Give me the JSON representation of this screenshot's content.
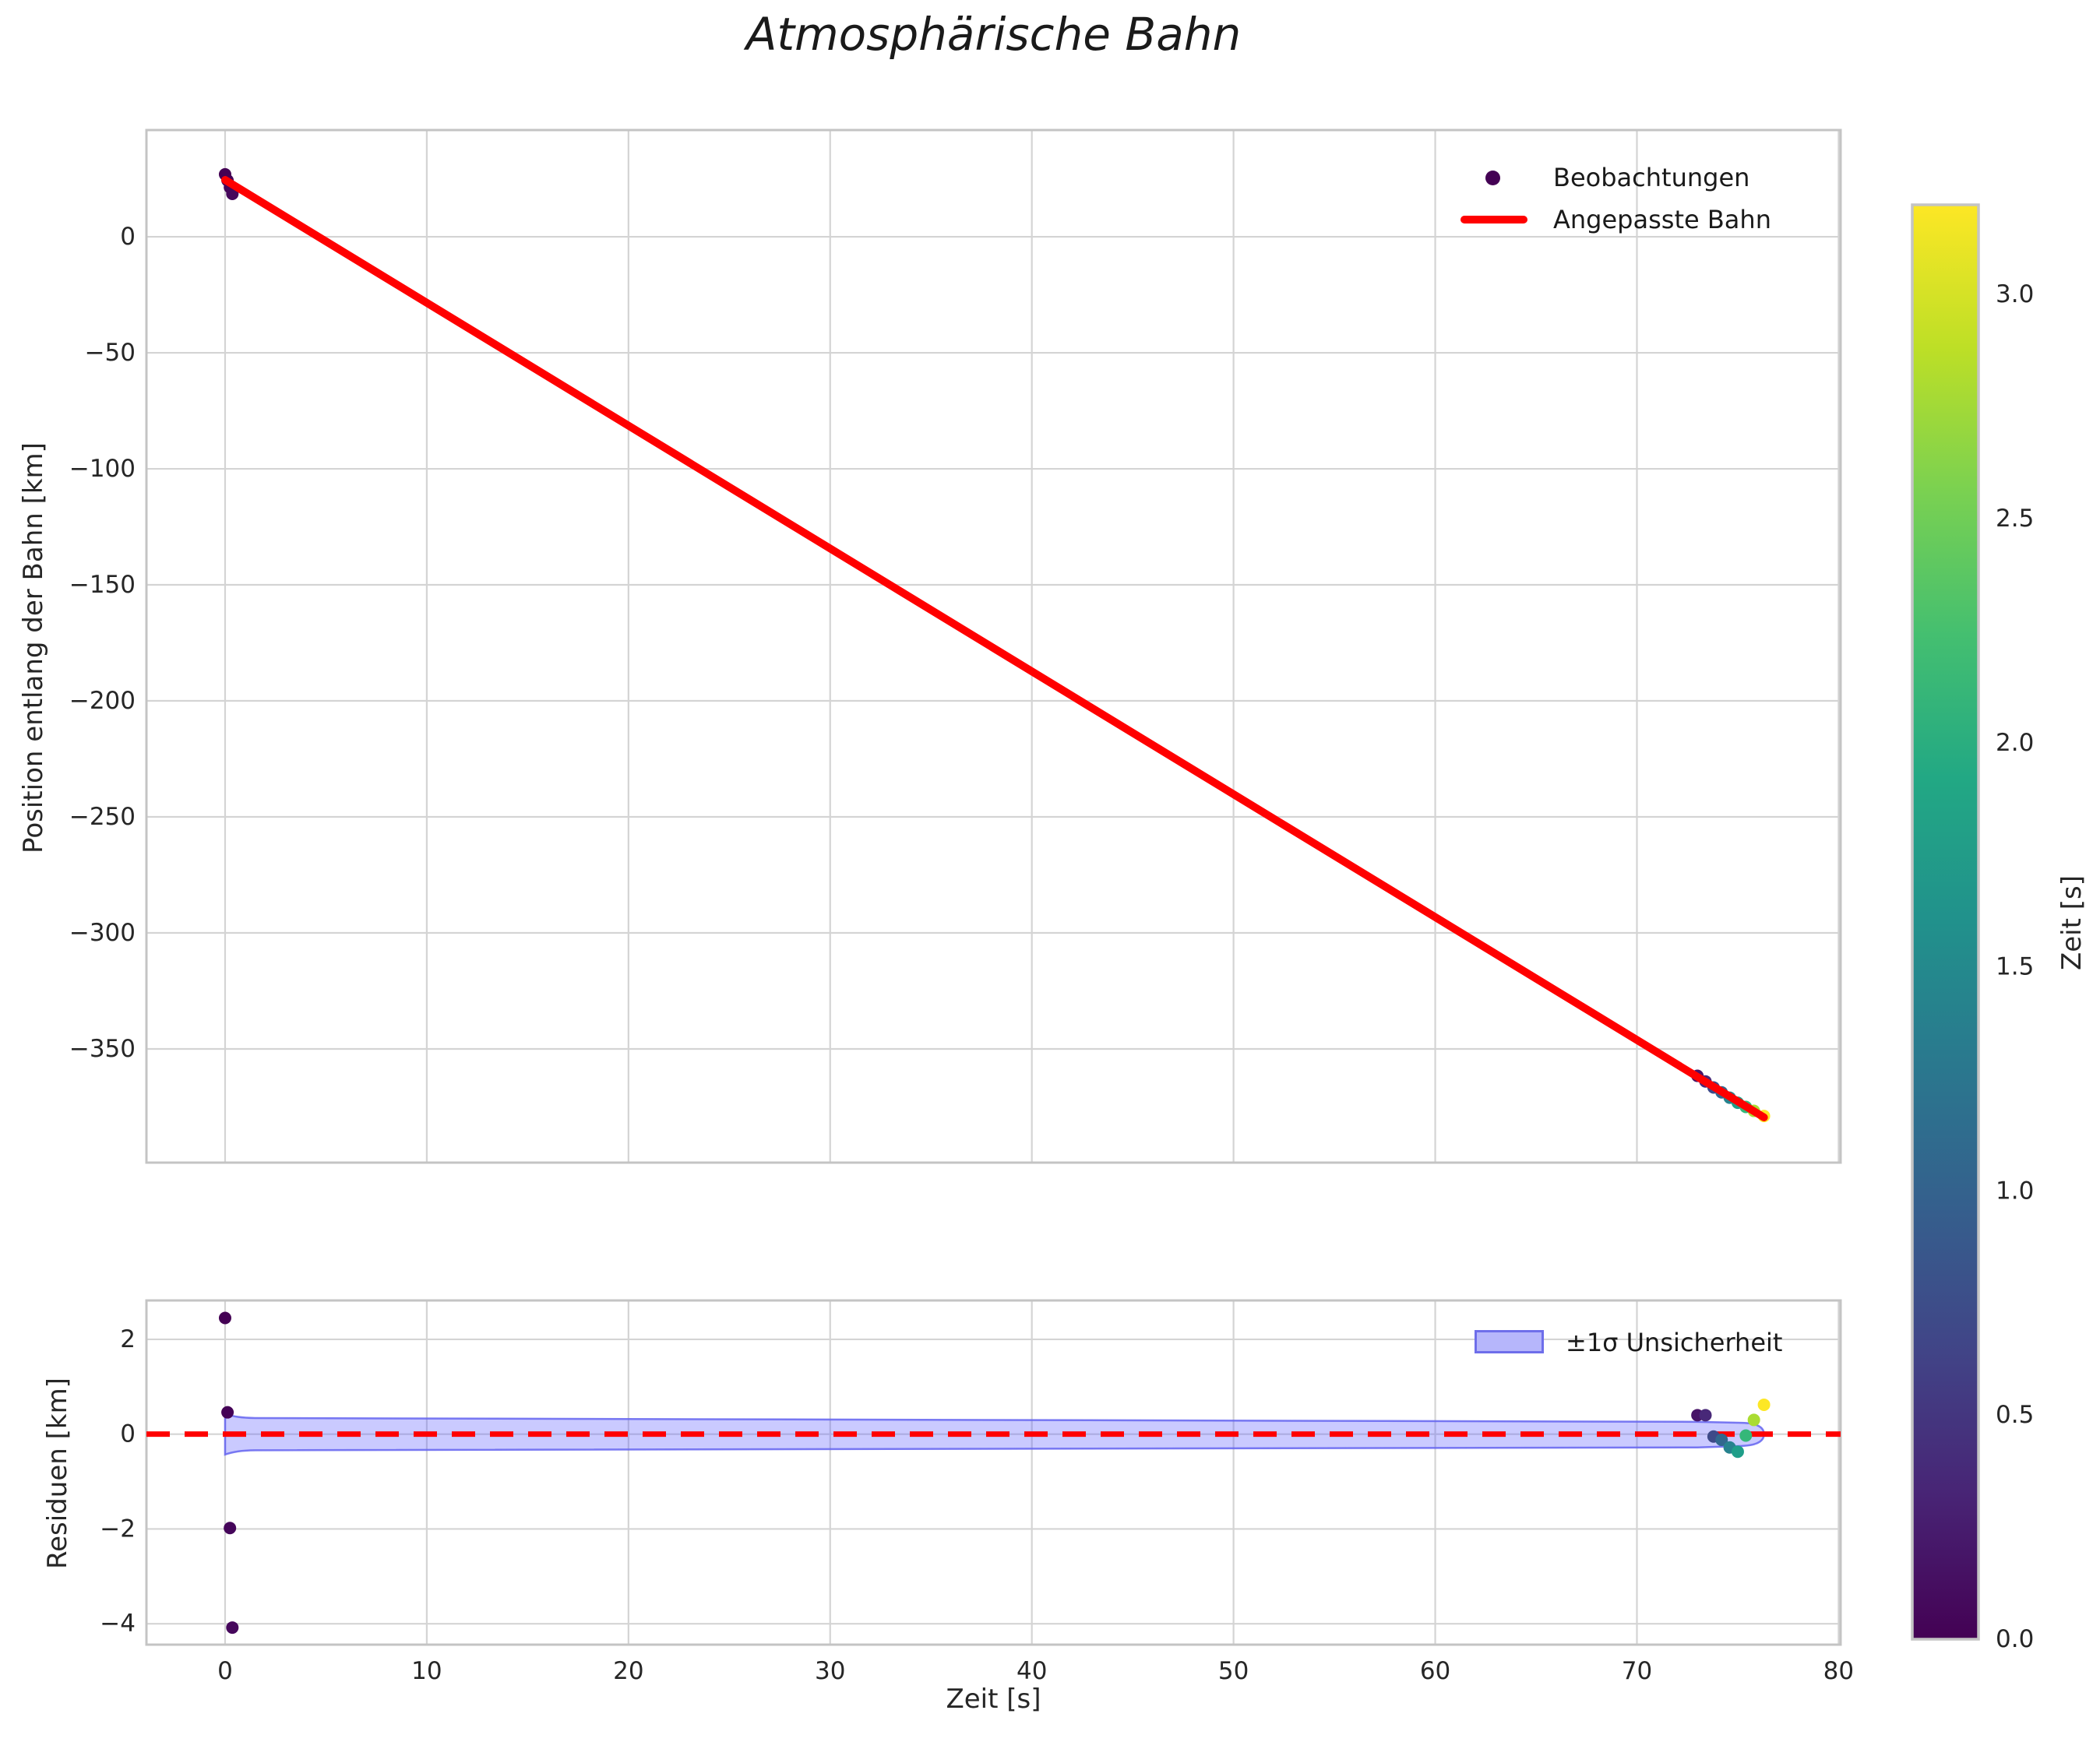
{
  "title": "Atmosphärische Bahn",
  "chart_data": [
    {
      "type": "scatter",
      "role": "trajectory",
      "title": "Atmosphärische Bahn",
      "ylabel": "Position entlang der Bahn [km]",
      "xlim": [
        -3.9,
        80.1
      ],
      "ylim": [
        -399,
        46
      ],
      "xticks": [
        0,
        10,
        20,
        30,
        40,
        50,
        60,
        70,
        80
      ],
      "xticklabels": [],
      "yticks": [
        0,
        -50,
        -100,
        -150,
        -200,
        -250,
        -300,
        -350
      ],
      "yticklabels": [
        "0",
        "−50",
        "−100",
        "−150",
        "−200",
        "−250",
        "−300",
        "−350"
      ],
      "grid": true,
      "legend": [
        {
          "label": "Beobachtungen",
          "marker": "dot",
          "color": "#440154"
        },
        {
          "label": "Angepasste Bahn",
          "marker": "line",
          "color": "#ff0000"
        }
      ],
      "series": [
        {
          "name": "Beobachtungen",
          "type": "scatter",
          "x": [
            0,
            0.12,
            0.24,
            0.36,
            73.0,
            73.4,
            73.8,
            74.2,
            74.6,
            75.0,
            75.4,
            75.8,
            76.3
          ],
          "y": [
            26.9,
            24.3,
            21.3,
            18.5,
            -361.6,
            -364.0,
            -366.6,
            -368.7,
            -371.0,
            -373.2,
            -375.0,
            -376.7,
            -378.9
          ],
          "colors": [
            "#440154",
            "#440256",
            "#45065a",
            "#46085c",
            "#481467",
            "#482878",
            "#3e4a89",
            "#31688e",
            "#26828e",
            "#1f9e89",
            "#35b779",
            "#aadc32",
            "#fde725"
          ]
        },
        {
          "name": "Angepasste Bahn",
          "type": "line",
          "x": [
            0,
            76.3
          ],
          "y": [
            24.5,
            -379.5
          ],
          "color": "#ff0000",
          "width": 10
        }
      ]
    },
    {
      "type": "scatter",
      "role": "residuals",
      "ylabel": "Residuen [km]",
      "xlabel": "Zeit [s]",
      "xlim": [
        -3.9,
        80.1
      ],
      "ylim": [
        -4.44,
        2.82
      ],
      "xticks": [
        0,
        10,
        20,
        30,
        40,
        50,
        60,
        70,
        80
      ],
      "xticklabels": [
        "0",
        "10",
        "20",
        "30",
        "40",
        "50",
        "60",
        "70",
        "80"
      ],
      "yticks": [
        2,
        0,
        -2,
        -4
      ],
      "yticklabels": [
        "2",
        "0",
        "−2",
        "−4"
      ],
      "grid": true,
      "legend": [
        {
          "label": "±1σ Unsicherheit",
          "marker": "patch",
          "fill": "#b6b6fb",
          "edge": "#6e6eea"
        }
      ],
      "zero_line": {
        "y": 0,
        "color": "#ff0000",
        "dashed": true
      },
      "band": {
        "x_start": 0,
        "x_end": 76.3,
        "halfwidth_start": 0.43,
        "halfwidth_main": 0.34,
        "halfwidth_end": 0.23,
        "fill": "rgba(80,80,255,0.30)",
        "edge": "rgba(100,100,240,0.85)"
      },
      "series": [
        {
          "name": "Residuen",
          "type": "scatter",
          "x": [
            0,
            0.12,
            0.24,
            0.36,
            73.0,
            73.4,
            73.8,
            74.2,
            74.6,
            75.0,
            75.4,
            75.8,
            76.3
          ],
          "y": [
            2.45,
            0.46,
            -1.98,
            -4.08,
            0.4,
            0.4,
            -0.05,
            -0.12,
            -0.28,
            -0.37,
            -0.03,
            0.3,
            0.62
          ],
          "colors": [
            "#440154",
            "#440256",
            "#45065a",
            "#46085c",
            "#481467",
            "#482878",
            "#3e4a89",
            "#31688e",
            "#26828e",
            "#1f9e89",
            "#35b779",
            "#aadc32",
            "#fde725"
          ]
        }
      ]
    }
  ],
  "colorbar": {
    "label": "Zeit [s]",
    "vmin": 0.0,
    "vmax": 3.2,
    "ticks": [
      0.0,
      0.5,
      1.0,
      1.5,
      2.0,
      2.5,
      3.0
    ],
    "ticklabels": [
      "0.0",
      "0.5",
      "1.0",
      "1.5",
      "2.0",
      "2.5",
      "3.0"
    ],
    "colormap": "viridis",
    "gradient_stops": [
      [
        0,
        "#440154"
      ],
      [
        0.1,
        "#482475"
      ],
      [
        0.2,
        "#414487"
      ],
      [
        0.3,
        "#355f8d"
      ],
      [
        0.4,
        "#2a788e"
      ],
      [
        0.5,
        "#21918c"
      ],
      [
        0.6,
        "#22a884"
      ],
      [
        0.7,
        "#44bf70"
      ],
      [
        0.8,
        "#7ad151"
      ],
      [
        0.9,
        "#bddf26"
      ],
      [
        1,
        "#fde725"
      ]
    ]
  }
}
